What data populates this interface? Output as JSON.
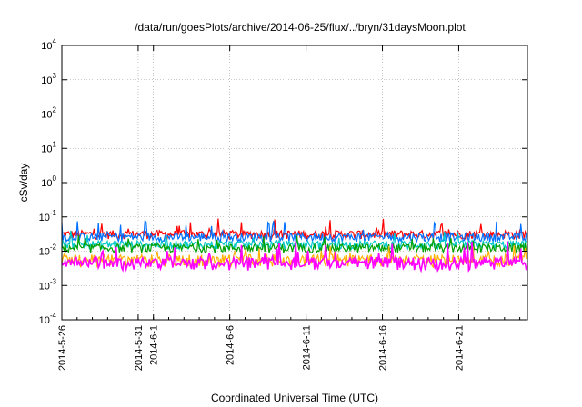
{
  "chart_data": {
    "type": "line",
    "title": "/data/run/goesPlots/archive/2014-06-25/flux/../bryn/31daysMoon.plot",
    "xlabel": "Coordinated Universal Time (UTC)",
    "ylabel": "cSv/day",
    "y_scale": "log",
    "ylim": [
      0.0001,
      10000
    ],
    "y_tick_labels": [
      {
        "base": "10",
        "exp": "4"
      },
      {
        "base": "10",
        "exp": "3"
      },
      {
        "base": "10",
        "exp": "2"
      },
      {
        "base": "10",
        "exp": "1"
      },
      {
        "base": "10",
        "exp": "0"
      },
      {
        "base": "10",
        "exp": "-1"
      },
      {
        "base": "10",
        "exp": "-2"
      },
      {
        "base": "10",
        "exp": "-3"
      },
      {
        "base": "10",
        "exp": "-4"
      }
    ],
    "x_range_days": [
      "2014-05-26",
      "2014-06-25"
    ],
    "x_tick_labels": [
      "2014-5-26",
      "2014-5-31",
      "2014-6-1",
      "2014-6-6",
      "2014-6-11",
      "2014-6-16",
      "2014-6-21"
    ],
    "x_ticks": [
      {
        "label": "2014-5-26",
        "day": 0
      },
      {
        "label": "2014-5-31",
        "day": 5
      },
      {
        "label": "2014-6-1",
        "day": 6
      },
      {
        "label": "2014-6-6",
        "day": 11
      },
      {
        "label": "2014-6-11",
        "day": 16
      },
      {
        "label": "2014-6-16",
        "day": 21
      },
      {
        "label": "2014-6-21",
        "day": 26
      }
    ],
    "grid": true,
    "legend": "none",
    "series": [
      {
        "color": "#ff0000",
        "typical_value": 0.03,
        "spike_max": 0.09
      },
      {
        "color": "#0070ff",
        "typical_value": 0.025,
        "spike_max": 0.08
      },
      {
        "color": "#00c8c8",
        "typical_value": 0.015,
        "spike_max": 0.04
      },
      {
        "color": "#00a000",
        "typical_value": 0.012,
        "spike_max": 0.03
      },
      {
        "color": "#ffb000",
        "typical_value": 0.006,
        "spike_max": 0.015
      },
      {
        "color": "#ff00ff",
        "typical_value": 0.005,
        "spike_max": 0.02
      }
    ]
  }
}
